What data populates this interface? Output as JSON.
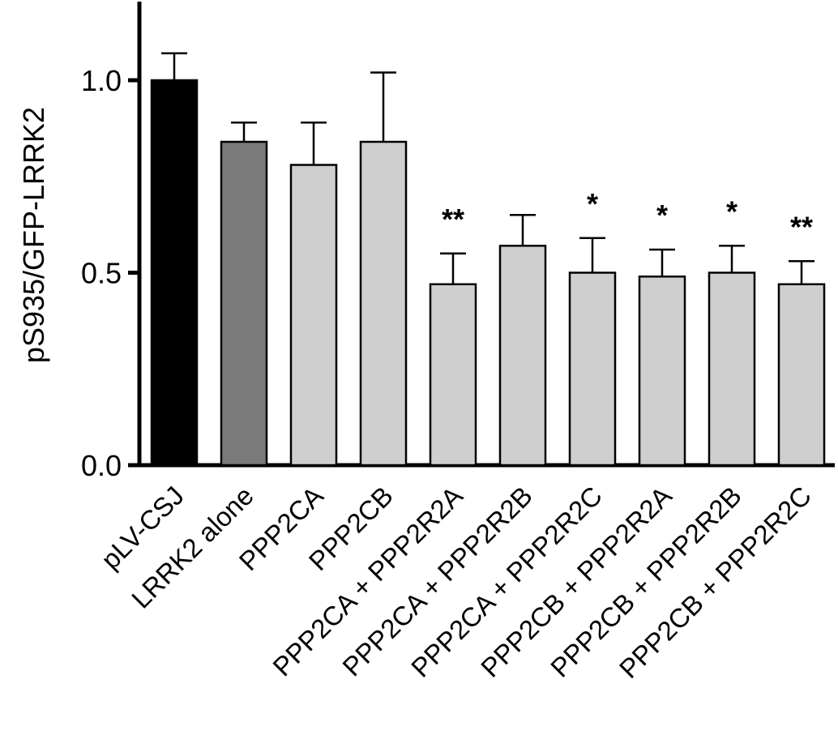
{
  "chart_data": {
    "type": "bar",
    "title": "",
    "xlabel": "",
    "ylabel": "pS935/GFP-LRRK2",
    "ylim": [
      0,
      1.2
    ],
    "yticks": [
      0.0,
      0.5,
      1.0
    ],
    "ytick_labels": [
      "0.0",
      "0.5",
      "1.0"
    ],
    "grid": false,
    "categories": [
      "pLV-CSJ",
      "LRRK2 alone",
      "PPP2CA",
      "PPP2CB",
      "PPP2CA + PPP2R2A",
      "PPP2CA + PPP2R2B",
      "PPP2CA + PPP2R2C",
      "PPP2CB + PPP2R2A",
      "PPP2CB + PPP2R2B",
      "PPP2CB + PPP2R2C"
    ],
    "values": [
      1.0,
      0.84,
      0.78,
      0.84,
      0.47,
      0.57,
      0.5,
      0.49,
      0.5,
      0.47
    ],
    "errors": [
      0.07,
      0.05,
      0.11,
      0.18,
      0.08,
      0.08,
      0.09,
      0.07,
      0.07,
      0.06
    ],
    "significance": [
      "",
      "",
      "",
      "",
      "**",
      "",
      "*",
      "*",
      "*",
      "**"
    ],
    "bar_colors": [
      "#000000",
      "#7a7a7a",
      "#cfcfcf",
      "#cfcfcf",
      "#cfcfcf",
      "#cfcfcf",
      "#cfcfcf",
      "#cfcfcf",
      "#cfcfcf",
      "#cfcfcf"
    ]
  }
}
